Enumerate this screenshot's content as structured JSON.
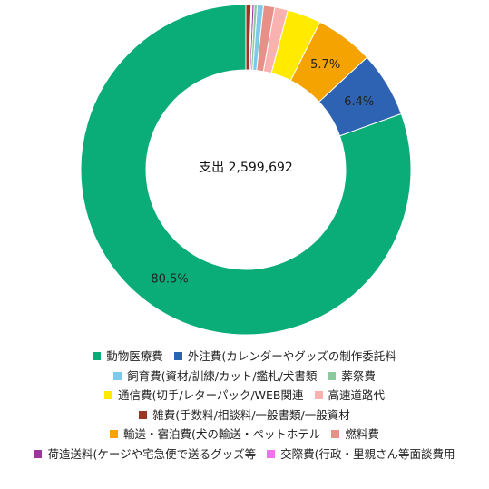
{
  "chart_data": {
    "type": "donut",
    "center_label": "支出 2,599,692",
    "series": [
      {
        "name": "動物医療費",
        "value": 80.5,
        "label": "80.5%",
        "color": "#0aad78"
      },
      {
        "name": "外注費(カレンダーやグッズの制作委託料",
        "value": 6.4,
        "label": "6.4%",
        "color": "#2e63b3"
      },
      {
        "name": "輸送・宿泊費(犬の輸送・ペットホテル",
        "value": 5.7,
        "label": "5.7%",
        "color": "#f5a300"
      },
      {
        "name": "通信費(切手/レターパック/WEB関連",
        "value": 3.3,
        "label": "",
        "color": "#ffea00"
      },
      {
        "name": "高速道路代",
        "value": 1.3,
        "label": "",
        "color": "#f9b2b0"
      },
      {
        "name": "燃料費",
        "value": 1.1,
        "label": "",
        "color": "#e89088"
      },
      {
        "name": "飼育費(資材/訓練/カット/鑑札/犬書類",
        "value": 0.6,
        "label": "",
        "color": "#7ec8ea"
      },
      {
        "name": "葬祭費",
        "value": 0.3,
        "label": "",
        "color": "#8cc8a0"
      },
      {
        "name": "荷造送料(ケージや宅急便で送るグッズ等",
        "value": 0.2,
        "label": "",
        "color": "#a0349c"
      },
      {
        "name": "交際費(行政・里親さん等面談費用",
        "value": 0.1,
        "label": "",
        "color": "#f070ee"
      },
      {
        "name": "雑費(手数料/相談料/一般書類/一般資材",
        "value": 0.5,
        "label": "",
        "color": "#9b3524"
      }
    ],
    "legend_order": [
      [
        "動物医療費",
        "外注費(カレンダーやグッズの制作委託料"
      ],
      [
        "飼育費(資材/訓練/カット/鑑札/犬書類",
        "葬祭費"
      ],
      [
        "通信費(切手/レターパック/WEB関連",
        "高速道路代"
      ],
      [
        "雑費(手数料/相談料/一般書類/一般資材"
      ],
      [
        "輸送・宿泊費(犬の輸送・ペットホテル",
        "燃料費"
      ],
      [
        "荷造送料(ケージや宅急便で送るグッズ等",
        "交際費(行政・里親さん等面談費用"
      ]
    ]
  }
}
